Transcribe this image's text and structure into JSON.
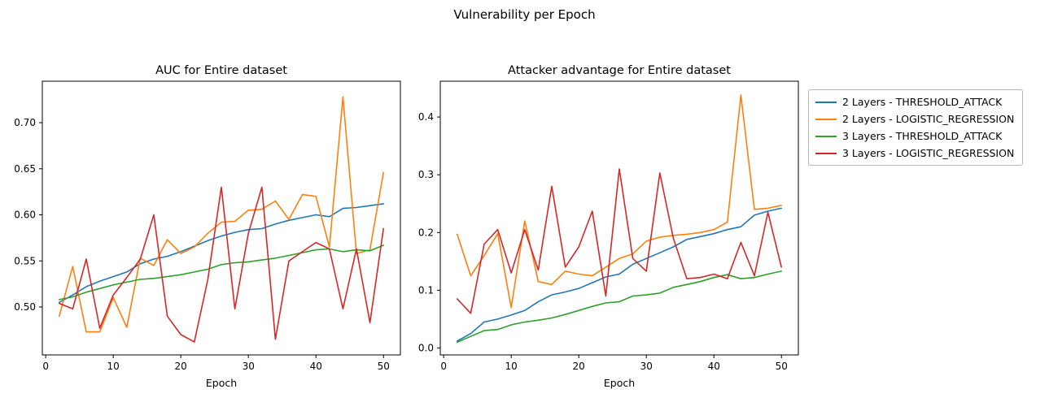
{
  "figure": {
    "title": "Vulnerability per Epoch"
  },
  "legend": {
    "entries": [
      {
        "label": "2 Layers - THRESHOLD_ATTACK",
        "color": "#1f77b4"
      },
      {
        "label": "2 Layers - LOGISTIC_REGRESSION",
        "color": "#ff7f0e"
      },
      {
        "label": "3 Layers - THRESHOLD_ATTACK",
        "color": "#2ca02c"
      },
      {
        "label": "3 Layers - LOGISTIC_REGRESSION",
        "color": "#d62728"
      }
    ]
  },
  "chart_data": [
    {
      "type": "line",
      "title": "AUC for Entire dataset",
      "xlabel": "Epoch",
      "ylabel": "",
      "x": [
        2,
        4,
        6,
        8,
        10,
        12,
        14,
        16,
        18,
        20,
        22,
        24,
        26,
        28,
        30,
        32,
        34,
        36,
        38,
        40,
        42,
        44,
        46,
        48,
        50
      ],
      "xlim": [
        -0.5,
        52.5
      ],
      "ylim": [
        0.448,
        0.745
      ],
      "xticks": [
        0,
        10,
        20,
        30,
        40,
        50
      ],
      "yticks": [
        0.5,
        0.55,
        0.6,
        0.65,
        0.7
      ],
      "yticklabels": [
        "0.50",
        "0.55",
        "0.60",
        "0.65",
        "0.70"
      ],
      "grid": false,
      "series": [
        {
          "name": "2 Layers - THRESHOLD_ATTACK",
          "color": "#1f77b4",
          "values": [
            0.505,
            0.513,
            0.522,
            0.528,
            0.533,
            0.538,
            0.547,
            0.552,
            0.555,
            0.56,
            0.566,
            0.572,
            0.577,
            0.581,
            0.584,
            0.585,
            0.59,
            0.594,
            0.597,
            0.6,
            0.598,
            0.607,
            0.608,
            0.61,
            0.612
          ]
        },
        {
          "name": "2 Layers - LOGISTIC_REGRESSION",
          "color": "#ff7f0e",
          "values": [
            0.49,
            0.544,
            0.473,
            0.473,
            0.51,
            0.478,
            0.553,
            0.545,
            0.573,
            0.558,
            0.565,
            0.58,
            0.592,
            0.593,
            0.605,
            0.606,
            0.615,
            0.595,
            0.622,
            0.62,
            0.565,
            0.728,
            0.558,
            0.562,
            0.646
          ]
        },
        {
          "name": "3 Layers - THRESHOLD_ATTACK",
          "color": "#2ca02c",
          "values": [
            0.508,
            0.511,
            0.516,
            0.52,
            0.524,
            0.527,
            0.53,
            0.531,
            0.533,
            0.535,
            0.538,
            0.541,
            0.546,
            0.548,
            0.549,
            0.551,
            0.553,
            0.556,
            0.559,
            0.562,
            0.563,
            0.56,
            0.562,
            0.561,
            0.567
          ]
        },
        {
          "name": "3 Layers - LOGISTIC_REGRESSION",
          "color": "#d62728",
          "values": [
            0.504,
            0.498,
            0.552,
            0.477,
            0.513,
            0.532,
            0.552,
            0.6,
            0.49,
            0.47,
            0.462,
            0.53,
            0.63,
            0.498,
            0.58,
            0.63,
            0.465,
            0.55,
            0.56,
            0.57,
            0.563,
            0.498,
            0.563,
            0.483,
            0.585
          ]
        }
      ]
    },
    {
      "type": "line",
      "title": "Attacker advantage for Entire dataset",
      "xlabel": "Epoch",
      "ylabel": "",
      "x": [
        2,
        4,
        6,
        8,
        10,
        12,
        14,
        16,
        18,
        20,
        22,
        24,
        26,
        28,
        30,
        32,
        34,
        36,
        38,
        40,
        42,
        44,
        46,
        48,
        50
      ],
      "xlim": [
        -0.5,
        52.5
      ],
      "ylim": [
        -0.012,
        0.462
      ],
      "xticks": [
        0,
        10,
        20,
        30,
        40,
        50
      ],
      "yticks": [
        0.0,
        0.1,
        0.2,
        0.3,
        0.4
      ],
      "yticklabels": [
        "0.0",
        "0.1",
        "0.2",
        "0.3",
        "0.4"
      ],
      "grid": false,
      "series": [
        {
          "name": "2 Layers - THRESHOLD_ATTACK",
          "color": "#1f77b4",
          "values": [
            0.012,
            0.025,
            0.045,
            0.05,
            0.057,
            0.065,
            0.08,
            0.092,
            0.097,
            0.103,
            0.113,
            0.123,
            0.128,
            0.145,
            0.155,
            0.165,
            0.175,
            0.188,
            0.193,
            0.198,
            0.205,
            0.21,
            0.23,
            0.237,
            0.242
          ]
        },
        {
          "name": "2 Layers - LOGISTIC_REGRESSION",
          "color": "#ff7f0e",
          "values": [
            0.197,
            0.125,
            0.16,
            0.198,
            0.07,
            0.22,
            0.115,
            0.11,
            0.133,
            0.128,
            0.125,
            0.14,
            0.155,
            0.163,
            0.185,
            0.192,
            0.195,
            0.197,
            0.2,
            0.205,
            0.218,
            0.438,
            0.24,
            0.242,
            0.247
          ]
        },
        {
          "name": "3 Layers - THRESHOLD_ATTACK",
          "color": "#2ca02c",
          "values": [
            0.01,
            0.02,
            0.03,
            0.032,
            0.04,
            0.045,
            0.048,
            0.052,
            0.058,
            0.065,
            0.072,
            0.078,
            0.08,
            0.09,
            0.092,
            0.095,
            0.105,
            0.11,
            0.115,
            0.122,
            0.127,
            0.12,
            0.122,
            0.128,
            0.133
          ]
        },
        {
          "name": "3 Layers - LOGISTIC_REGRESSION",
          "color": "#d62728",
          "values": [
            0.085,
            0.06,
            0.18,
            0.205,
            0.13,
            0.205,
            0.135,
            0.28,
            0.14,
            0.175,
            0.237,
            0.09,
            0.31,
            0.155,
            0.133,
            0.303,
            0.19,
            0.12,
            0.122,
            0.128,
            0.12,
            0.183,
            0.125,
            0.235,
            0.14
          ]
        }
      ]
    }
  ]
}
